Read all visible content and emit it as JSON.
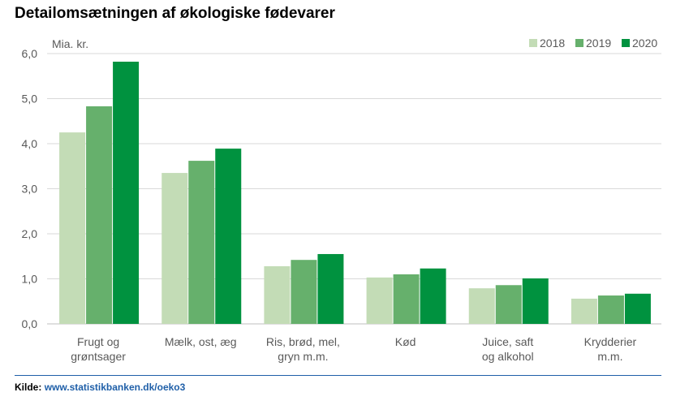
{
  "chart_data": {
    "type": "bar",
    "title": "Detailomsætningen af økologiske fødevarer",
    "ylabel": "Mia. kr.",
    "xlabel": "",
    "ylim": [
      0,
      6
    ],
    "yticks": [
      "0,0",
      "1,0",
      "2,0",
      "3,0",
      "4,0",
      "5,0",
      "6,0"
    ],
    "grid": true,
    "legend": "top-right",
    "categories": [
      [
        "Frugt og",
        "grøntsager"
      ],
      [
        "Mælk, ost, æg"
      ],
      [
        "Ris, brød, mel,",
        "gryn m.m."
      ],
      [
        "Kød"
      ],
      [
        "Juice, saft",
        "og alkohol"
      ],
      [
        "Krydderier",
        "m.m."
      ]
    ],
    "series": [
      {
        "name": "2018",
        "color": "#c3dcb6",
        "values": [
          4.25,
          3.35,
          1.28,
          1.03,
          0.79,
          0.56
        ]
      },
      {
        "name": "2019",
        "color": "#66b06c",
        "values": [
          4.83,
          3.62,
          1.42,
          1.1,
          0.86,
          0.63
        ]
      },
      {
        "name": "2020",
        "color": "#00923f",
        "values": [
          5.82,
          3.89,
          1.55,
          1.23,
          1.01,
          0.67
        ]
      }
    ]
  },
  "source": {
    "label": "Kilde:",
    "link": "www.statistikbanken.dk/oeko3"
  }
}
